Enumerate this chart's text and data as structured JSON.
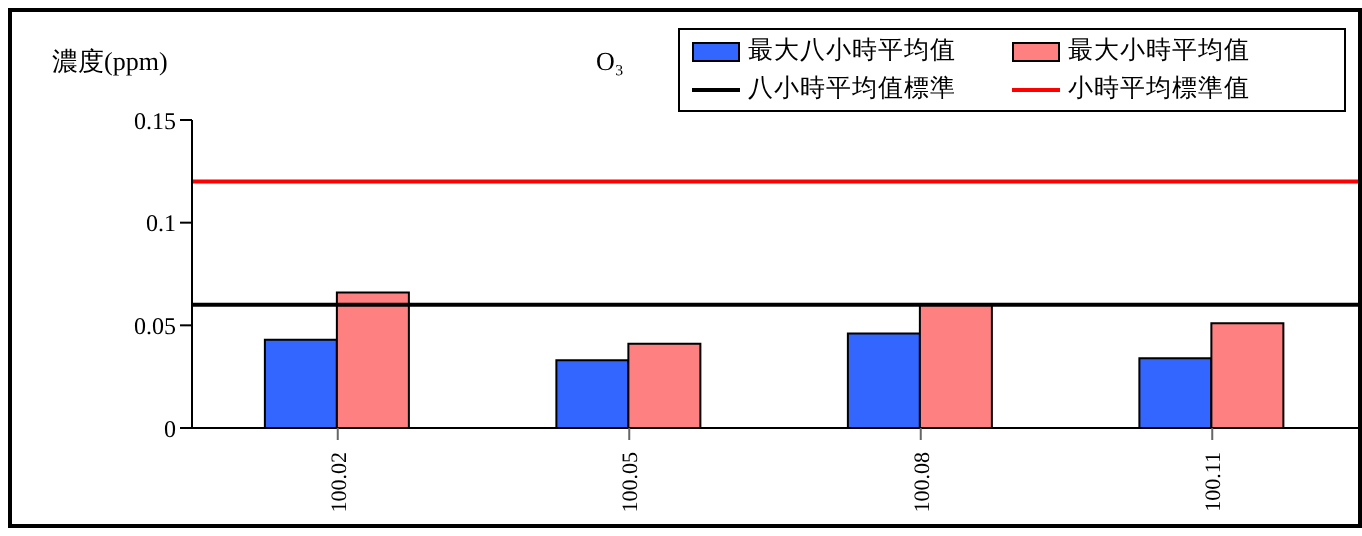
{
  "chart_data": {
    "type": "bar",
    "title": "O₃",
    "ylabel": "濃度(ppm)",
    "categories": [
      "100.02",
      "100.05",
      "100.08",
      "100.11"
    ],
    "series": [
      {
        "name": "最大八小時平均值",
        "color": "#3366ff",
        "values": [
          0.043,
          0.033,
          0.046,
          0.034
        ]
      },
      {
        "name": "最大小時平均值",
        "color": "#ff8080",
        "values": [
          0.066,
          0.041,
          0.06,
          0.051
        ]
      }
    ],
    "ref_lines": [
      {
        "axis": "y",
        "value": 0.06,
        "label": "八小時平均值標準",
        "color": "#000000"
      },
      {
        "axis": "y",
        "value": 0.12,
        "label": "小時平均標準值",
        "color": "#ff0000"
      }
    ],
    "ylim": [
      0,
      0.15
    ],
    "yticks": [
      0,
      0.05,
      0.1,
      0.15
    ],
    "legend": "top right"
  }
}
